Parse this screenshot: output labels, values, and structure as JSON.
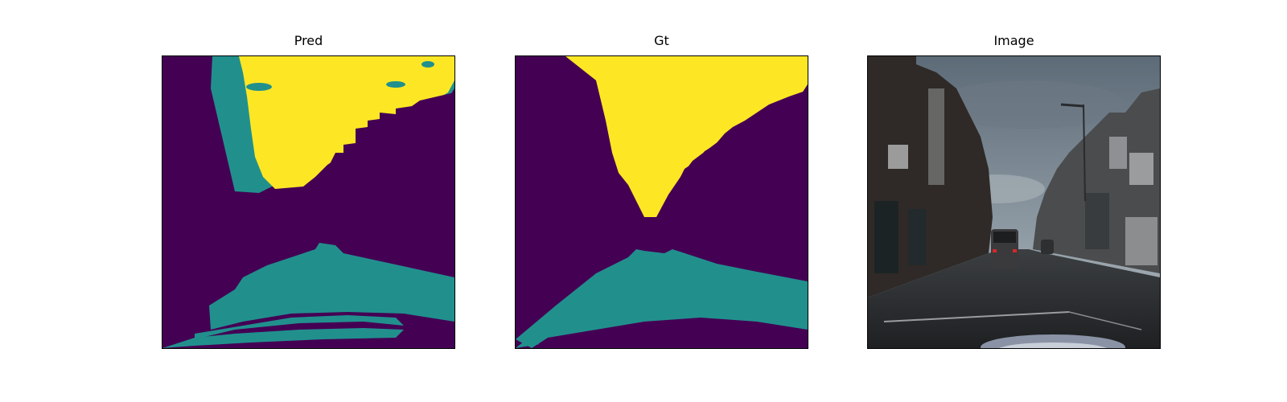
{
  "figure": {
    "panels": [
      {
        "title": "Pred"
      },
      {
        "title": "Gt"
      },
      {
        "title": "Image"
      }
    ]
  },
  "colors": {
    "background_class": "#440154",
    "road_class": "#21908d",
    "sky_class": "#fde725",
    "photo_sky": "#7d8a94",
    "photo_buildings": "#3a3d40",
    "photo_road": "#2b2d30"
  }
}
